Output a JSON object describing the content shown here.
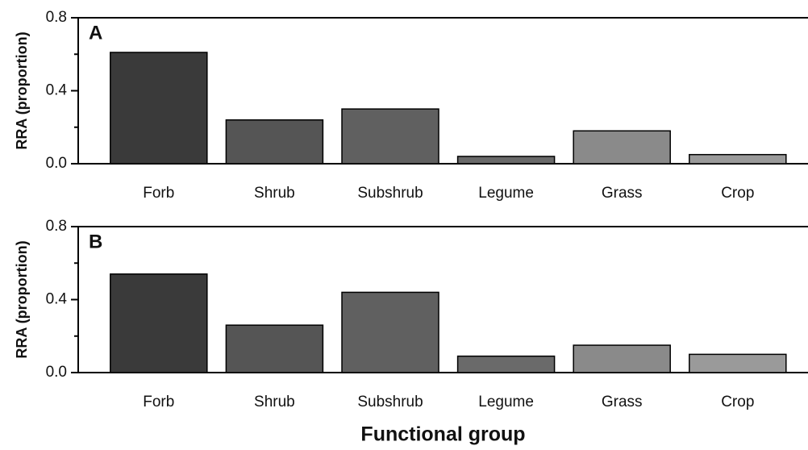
{
  "chart_data": [
    {
      "type": "bar",
      "panel_label": "A",
      "y_label": "RRA (proportion)",
      "categories": [
        "Forb",
        "Shrub",
        "Subshrub",
        "Legume",
        "Grass",
        "Crop"
      ],
      "values": [
        0.61,
        0.24,
        0.3,
        0.04,
        0.18,
        0.05
      ],
      "colors": [
        "#3a3a3a",
        "#555555",
        "#606060",
        "#6a6a6a",
        "#8a8a8a",
        "#9a9a9a"
      ],
      "ylim": [
        0,
        0.8
      ],
      "yticks": [
        {
          "value": 0,
          "label": "0.0"
        },
        0.4,
        0.8
      ],
      "minor_yticks": [
        0.2,
        0.6
      ]
    },
    {
      "type": "bar",
      "panel_label": "B",
      "y_label": "RRA (proportion)",
      "x_label": "Functional group",
      "categories": [
        "Forb",
        "Shrub",
        "Subshrub",
        "Legume",
        "Grass",
        "Crop"
      ],
      "values": [
        0.54,
        0.26,
        0.44,
        0.09,
        0.15,
        0.1
      ],
      "colors": [
        "#3a3a3a",
        "#555555",
        "#606060",
        "#6a6a6a",
        "#8a8a8a",
        "#9a9a9a"
      ],
      "ylim": [
        0,
        0.8
      ],
      "yticks": [
        {
          "value": 0,
          "label": "0.0"
        },
        0.4,
        0.8
      ],
      "minor_yticks": [
        0.2,
        0.6
      ]
    }
  ]
}
